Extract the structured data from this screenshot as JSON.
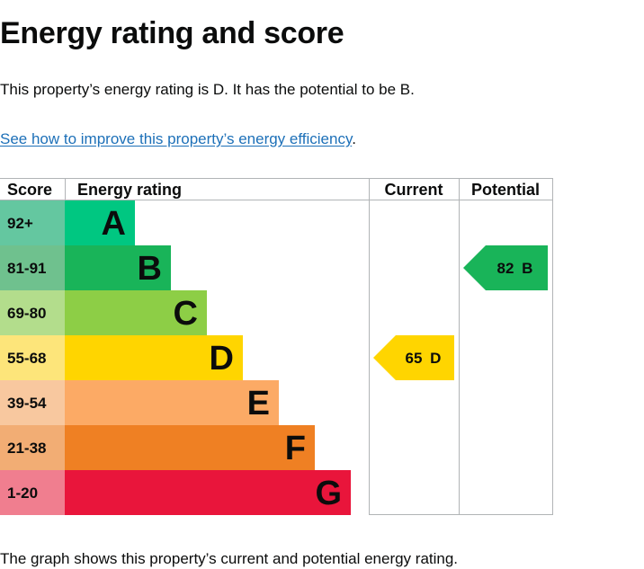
{
  "heading": "Energy rating and score",
  "intro_text": "This property’s energy rating is D. It has the potential to be B.",
  "improve_link": "See how to improve this property’s energy efficiency",
  "improve_link_suffix": ".",
  "footer_text": "The graph shows this property’s current and potential energy rating.",
  "chart_data": {
    "type": "table",
    "columns": [
      "Score",
      "Energy rating",
      "Current",
      "Potential"
    ],
    "bands": [
      {
        "range": "92+",
        "letter": "A",
        "color": "#00c781",
        "score_color": "#64c7a0"
      },
      {
        "range": "81-91",
        "letter": "B",
        "color": "#19b459",
        "score_color": "#6fc18e"
      },
      {
        "range": "69-80",
        "letter": "C",
        "color": "#8dce46",
        "score_color": "#b3dd8c"
      },
      {
        "range": "55-68",
        "letter": "D",
        "color": "#ffd500",
        "score_color": "#fde57a"
      },
      {
        "range": "39-54",
        "letter": "E",
        "color": "#fcaa65",
        "score_color": "#f8c89f"
      },
      {
        "range": "21-38",
        "letter": "F",
        "color": "#ef8023",
        "score_color": "#f2ad74"
      },
      {
        "range": "1-20",
        "letter": "G",
        "color": "#e9153b",
        "score_color": "#f07e8f"
      }
    ],
    "current": {
      "score": 65,
      "letter": "D",
      "label": "65 D",
      "color": "#ffd500"
    },
    "potential": {
      "score": 82,
      "letter": "B",
      "label": "82 B",
      "color": "#19b459"
    }
  }
}
